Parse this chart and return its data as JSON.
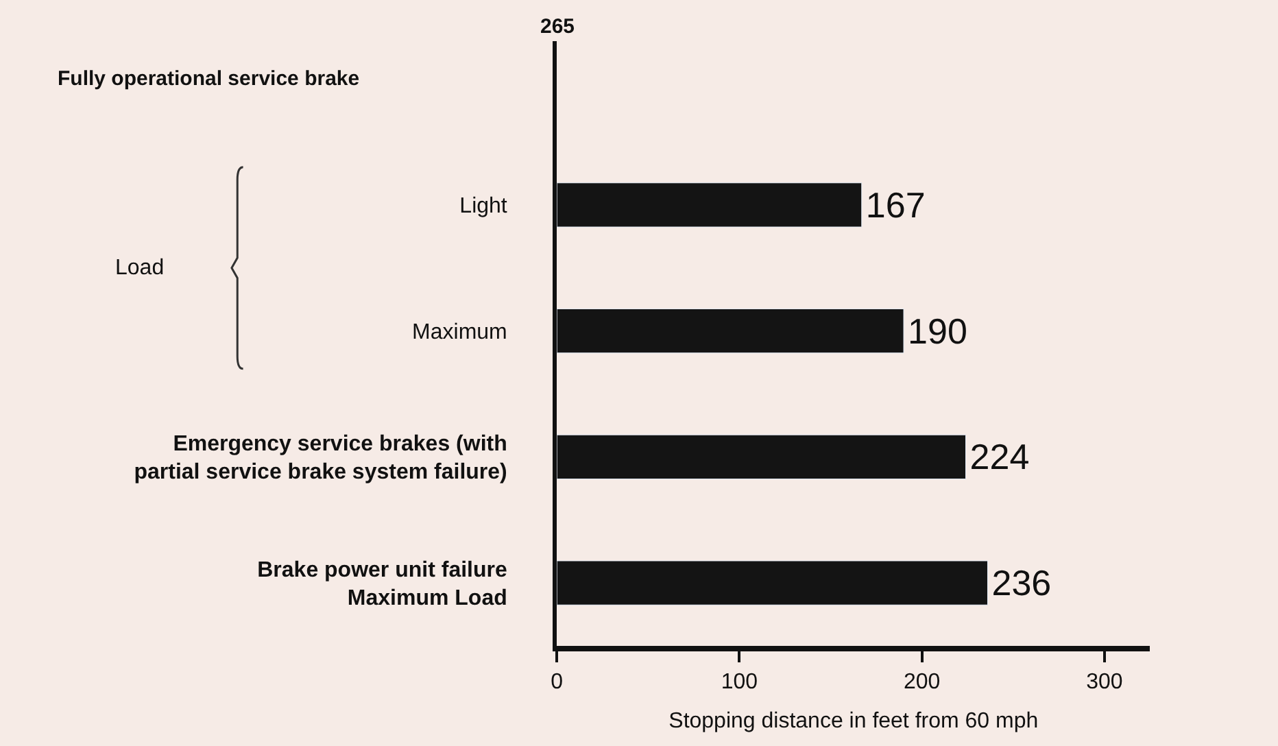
{
  "chart_data": {
    "type": "bar",
    "orientation": "horizontal",
    "categories": [
      "Light",
      "Maximum",
      "Emergency service brakes (with\npartial service brake system failure)",
      "Brake power unit failure\nMaximum Load"
    ],
    "values": [
      167,
      190,
      224,
      236
    ],
    "color": "#141414",
    "xlim": [
      0,
      325
    ],
    "xticks": [
      0,
      100,
      200,
      300
    ],
    "xlabel": "Stopping distance in feet from 60 mph",
    "annotations": [
      "265",
      "Fully operational service brake",
      "Load"
    ],
    "data_labels": true,
    "grid": false,
    "legend": false
  }
}
